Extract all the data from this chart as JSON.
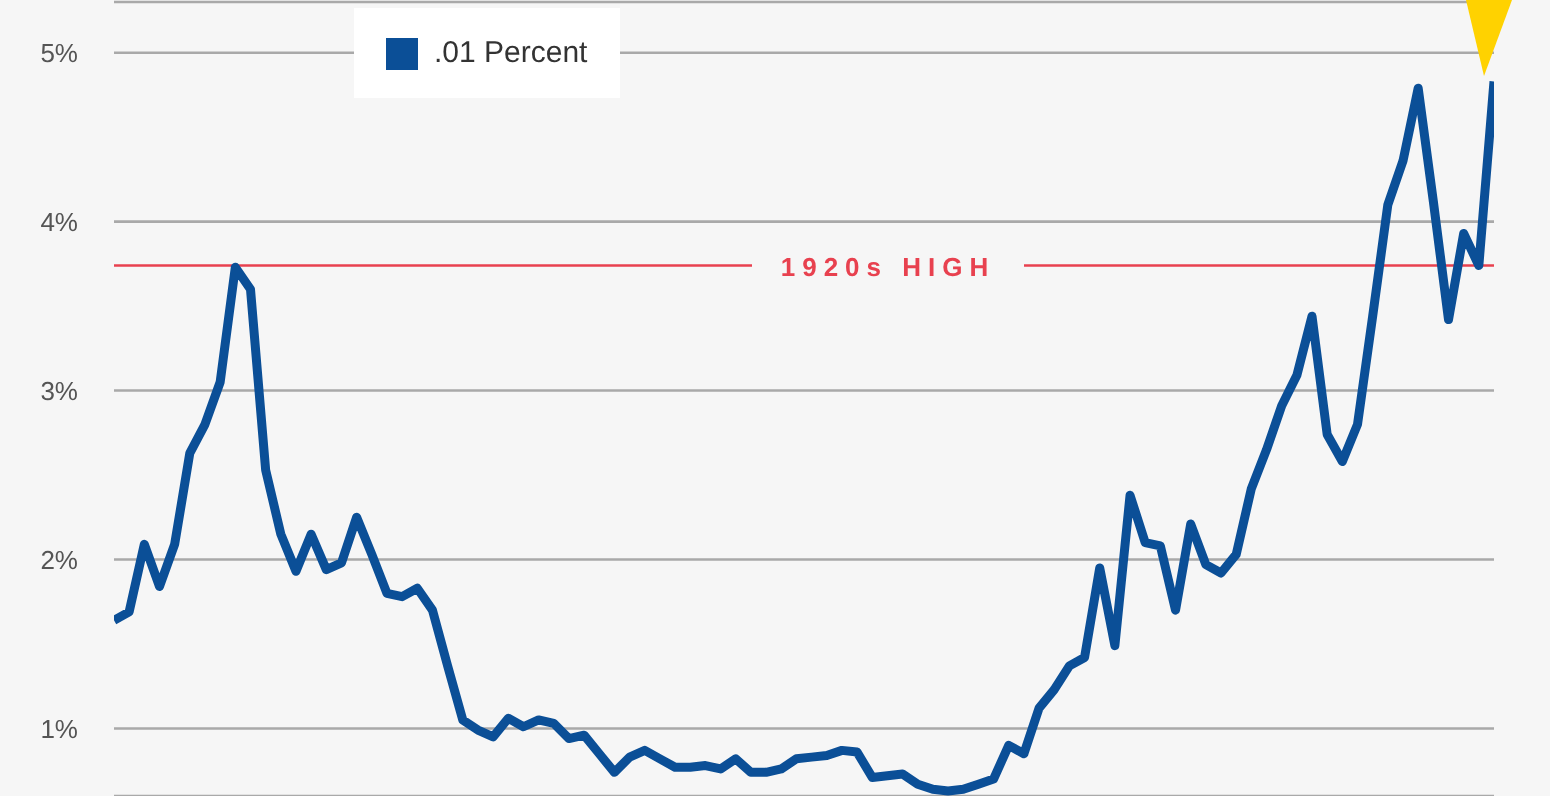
{
  "chart_data": {
    "type": "line",
    "categories": [
      null,
      null,
      null,
      null,
      null,
      null,
      null,
      null,
      null,
      null,
      null,
      null,
      null,
      null,
      null,
      null,
      null,
      null,
      null,
      null,
      null,
      null,
      null,
      null,
      null,
      null,
      null,
      null,
      null,
      null,
      null,
      null,
      null,
      null,
      null,
      null,
      null,
      null,
      null,
      null,
      null,
      null,
      null,
      null,
      null,
      null,
      null,
      null,
      null,
      null,
      null,
      null,
      null,
      null,
      null,
      null,
      null,
      null,
      null,
      null,
      null,
      null,
      null,
      null,
      null,
      null,
      null,
      null,
      null,
      null,
      null,
      null,
      null,
      null,
      null,
      null,
      null,
      null,
      null,
      null,
      null,
      null,
      null,
      null,
      null,
      null,
      null,
      null,
      null,
      null,
      null,
      null
    ],
    "series": [
      {
        "name": ".01 Percent",
        "color": "#0b4f97",
        "values": [
          1.64,
          1.69,
          2.09,
          1.84,
          2.09,
          2.63,
          2.8,
          3.05,
          3.73,
          3.6,
          2.53,
          2.15,
          1.93,
          2.15,
          1.94,
          1.98,
          2.25,
          2.03,
          1.8,
          1.78,
          1.83,
          1.7,
          1.37,
          1.05,
          0.99,
          0.95,
          1.06,
          1.01,
          1.05,
          1.03,
          0.94,
          0.96,
          0.85,
          0.74,
          0.83,
          0.87,
          0.82,
          0.77,
          0.77,
          0.78,
          0.76,
          0.82,
          0.74,
          0.74,
          0.76,
          0.82,
          0.83,
          0.84,
          0.87,
          0.86,
          0.71,
          0.72,
          0.73,
          0.67,
          0.64,
          0.63,
          0.64,
          0.67,
          0.7,
          0.9,
          0.85,
          1.12,
          1.23,
          1.37,
          1.42,
          1.95,
          1.49,
          2.38,
          2.1,
          2.08,
          1.7,
          2.21,
          1.97,
          1.92,
          2.03,
          2.42,
          2.65,
          2.91,
          3.09,
          3.44,
          2.74,
          2.58,
          2.8,
          3.44,
          4.1,
          4.36,
          4.79,
          4.12,
          3.42,
          3.93,
          3.74,
          4.83
        ]
      }
    ],
    "ylim": [
      0.6,
      5.3
    ],
    "yticks": [
      {
        "value": 1,
        "label": "1%"
      },
      {
        "value": 2,
        "label": "2%"
      },
      {
        "value": 3,
        "label": "3%"
      },
      {
        "value": 4,
        "label": "4%"
      },
      {
        "value": 5,
        "label": "5%"
      }
    ],
    "ref_lines": [
      {
        "axis": "y",
        "value": 3.74,
        "label": "1920s HIGH",
        "color": "#e8414f"
      }
    ],
    "grid": "y",
    "legend": "top",
    "tick_labels": "y",
    "marker": "none",
    "line_style": "solid"
  }
}
